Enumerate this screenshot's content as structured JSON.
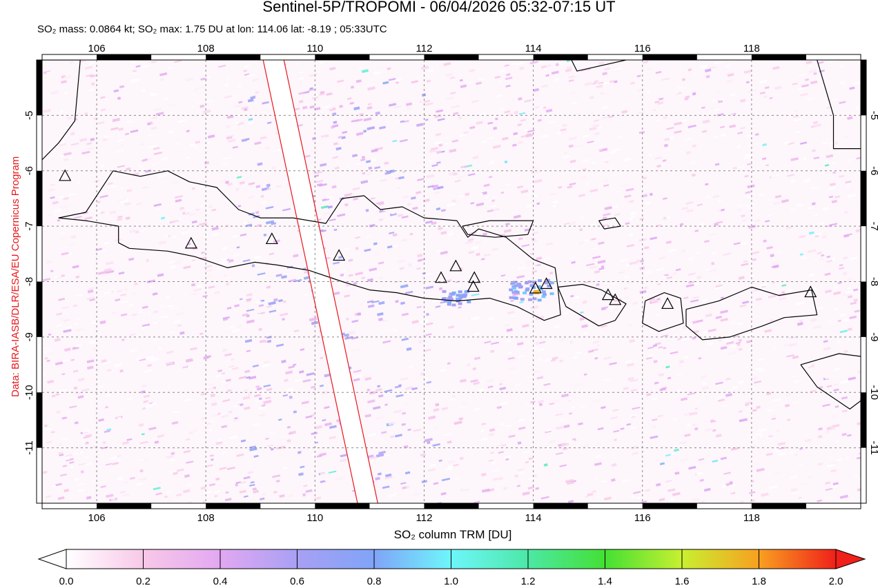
{
  "header": {
    "title": "Sentinel-5P/TROPOMI - 06/04/2026 05:32-07:15 UT",
    "subtitle": "SO₂ mass: 0.0864 kt; SO₂ max: 1.75 DU at lon: 114.06 lat: -8.19 ; 05:33UTC"
  },
  "credit": "Data: BIRA-IASB/DLR/ESA/EU Copernicus Program",
  "map": {
    "lon_range": [
      105.0,
      120.0
    ],
    "lat_range": [
      -12.0,
      -4.0
    ],
    "lon_ticks": [
      106,
      108,
      110,
      112,
      114,
      116,
      118
    ],
    "lat_ticks": [
      -5,
      -6,
      -7,
      -8,
      -9,
      -10,
      -11
    ],
    "lon_tick_labels": [
      "106",
      "108",
      "110",
      "112",
      "114",
      "116",
      "118"
    ],
    "lat_tick_labels": [
      "-5",
      "-6",
      "-7",
      "-8",
      "-9",
      "-10",
      "-11"
    ],
    "gridlines": true,
    "volcanoes": [
      {
        "lon": 105.42,
        "lat": -6.1
      },
      {
        "lon": 107.73,
        "lat": -7.32
      },
      {
        "lon": 109.21,
        "lat": -7.24
      },
      {
        "lon": 110.44,
        "lat": -7.54
      },
      {
        "lon": 112.31,
        "lat": -7.94
      },
      {
        "lon": 112.58,
        "lat": -7.73
      },
      {
        "lon": 112.92,
        "lat": -7.94
      },
      {
        "lon": 112.9,
        "lat": -8.1
      },
      {
        "lon": 114.04,
        "lat": -8.13
      },
      {
        "lon": 114.24,
        "lat": -8.05
      },
      {
        "lon": 115.37,
        "lat": -8.25
      },
      {
        "lon": 115.5,
        "lat": -8.34
      },
      {
        "lon": 116.46,
        "lat": -8.41
      },
      {
        "lon": 119.08,
        "lat": -8.2
      }
    ],
    "max_marker": {
      "lon": 114.06,
      "lat": -8.19
    },
    "swath_edges": [
      {
        "lon_top": 109.05,
        "lon_bottom": 110.78
      },
      {
        "lon_top": 109.43,
        "lon_bottom": 111.15
      }
    ],
    "colors": {
      "coast": "#000000",
      "swath": "#e8161b",
      "grid": "#888888"
    }
  },
  "colorbar": {
    "label": "SO₂ column TRM [DU]",
    "ticks": [
      "0.0",
      "0.2",
      "0.4",
      "0.6",
      "0.8",
      "1.0",
      "1.2",
      "1.4",
      "1.6",
      "1.8",
      "2.0"
    ],
    "stops": [
      {
        "v": 0.0,
        "c": "#ffffff"
      },
      {
        "v": 0.2,
        "c": "#f8c8e8"
      },
      {
        "v": 0.4,
        "c": "#e2a8f2"
      },
      {
        "v": 0.6,
        "c": "#a8a0f4"
      },
      {
        "v": 0.8,
        "c": "#80a4f8"
      },
      {
        "v": 1.0,
        "c": "#6ef6fb"
      },
      {
        "v": 1.2,
        "c": "#4ce8a6"
      },
      {
        "v": 1.4,
        "c": "#44e034"
      },
      {
        "v": 1.6,
        "c": "#c8f030"
      },
      {
        "v": 1.8,
        "c": "#f8a020"
      },
      {
        "v": 2.0,
        "c": "#f0201a"
      }
    ]
  }
}
